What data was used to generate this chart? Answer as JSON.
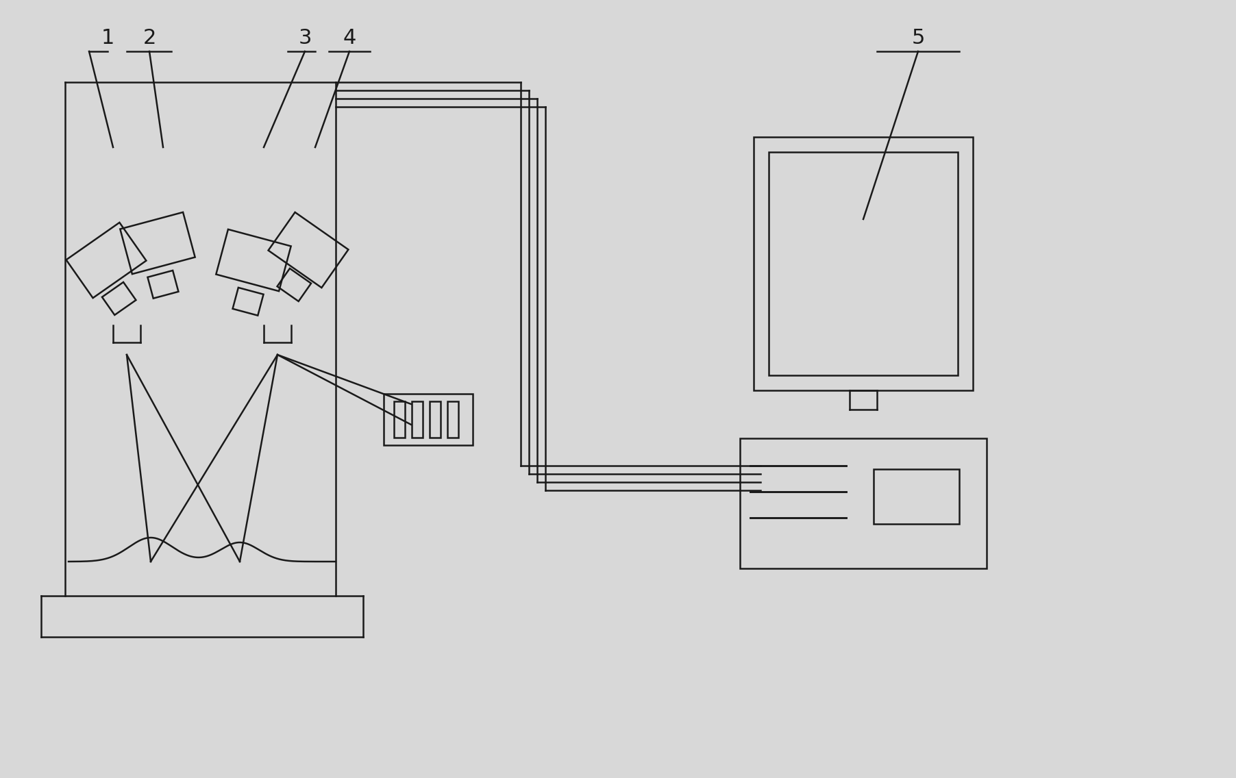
{
  "bg_color": "#d8d8d8",
  "line_color": "#1a1a1a",
  "lw": 1.8,
  "fig_width": 18.04,
  "fig_height": 11.36,
  "dpi": 100
}
